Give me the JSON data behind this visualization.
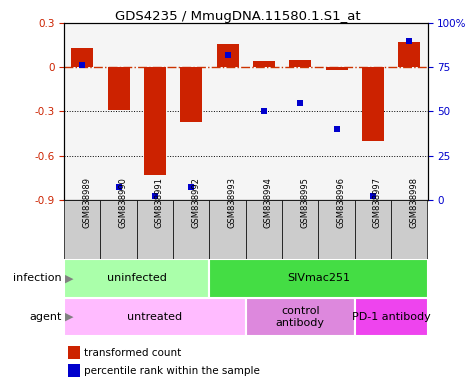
{
  "title": "GDS4235 / MmugDNA.11580.1.S1_at",
  "samples": [
    "GSM838989",
    "GSM838990",
    "GSM838991",
    "GSM838992",
    "GSM838993",
    "GSM838994",
    "GSM838995",
    "GSM838996",
    "GSM838997",
    "GSM838998"
  ],
  "red_bars": [
    0.13,
    -0.29,
    -0.73,
    -0.37,
    0.16,
    0.04,
    0.05,
    -0.02,
    -0.5,
    0.17
  ],
  "blue_dots_pct": [
    76,
    7,
    2,
    7,
    82,
    50,
    55,
    40,
    2,
    90
  ],
  "ylim_left": [
    -0.9,
    0.3
  ],
  "ylim_right": [
    0,
    100
  ],
  "yticks_left": [
    -0.9,
    -0.6,
    -0.3,
    0.0,
    0.3
  ],
  "yticks_right": [
    0,
    25,
    50,
    75,
    100
  ],
  "ytick_labels_right": [
    "0",
    "25",
    "50",
    "75",
    "100%"
  ],
  "hline_y": 0.0,
  "dotted_lines": [
    -0.3,
    -0.6
  ],
  "infection_groups": [
    {
      "label": "uninfected",
      "start": 0,
      "end": 4,
      "color": "#aaffaa"
    },
    {
      "label": "SIVmac251",
      "start": 4,
      "end": 10,
      "color": "#44dd44"
    }
  ],
  "agent_groups": [
    {
      "label": "untreated",
      "start": 0,
      "end": 5,
      "color": "#ffbbff"
    },
    {
      "label": "control\nantibody",
      "start": 5,
      "end": 8,
      "color": "#dd88dd"
    },
    {
      "label": "PD-1 antibody",
      "start": 8,
      "end": 10,
      "color": "#ee44ee"
    }
  ],
  "bar_color": "#cc2200",
  "dot_color": "#0000cc",
  "ref_line_color": "#cc3300",
  "sample_box_color": "#cccccc",
  "background_color": "#ffffff"
}
